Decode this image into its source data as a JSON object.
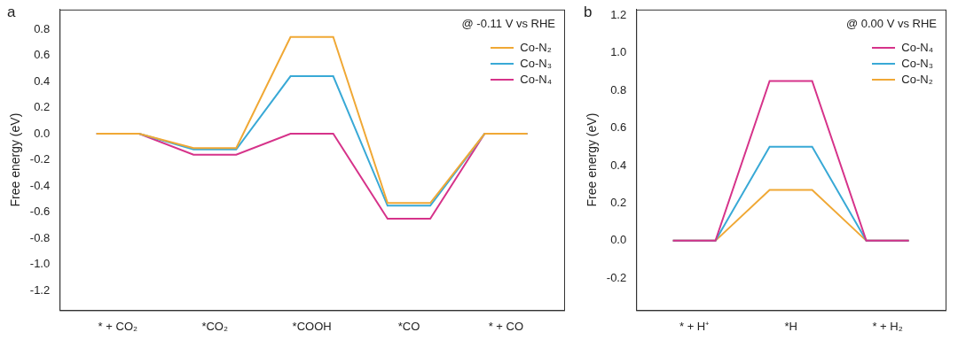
{
  "chart_data": [
    {
      "type": "step",
      "title": "a",
      "annotation": "@ -0.11 V vs RHE",
      "y_label": "Free energy (eV)",
      "categories": [
        "* + CO₂",
        "*CO₂",
        "*COOH",
        "*CO",
        "* + CO"
      ],
      "series": [
        {
          "name": "Co-N₂",
          "color": "#f0a835",
          "values": [
            0,
            -0.11,
            0.74,
            -0.53,
            0
          ]
        },
        {
          "name": "Co-N₃",
          "color": "#39a9d6",
          "values": [
            0,
            -0.12,
            0.44,
            -0.55,
            0
          ]
        },
        {
          "name": "Co-N₄",
          "color": "#d6338a",
          "values": [
            0,
            -0.16,
            0,
            -0.65,
            0
          ]
        }
      ],
      "ylim": [
        -1.35,
        0.95
      ],
      "yticks": [
        {
          "value": -1.2,
          "label": "-1.2"
        },
        {
          "value": -1,
          "label": "-1.0"
        },
        -0.8,
        -0.6,
        -0.4,
        -0.2,
        {
          "value": 0,
          "label": "0.0"
        },
        0.2,
        0.4,
        0.6,
        0.8
      ],
      "legend": "upper right",
      "grid": false
    },
    {
      "type": "step",
      "title": "b",
      "annotation": "@ 0.00 V vs RHE",
      "y_label": "Free energy (eV)",
      "categories": [
        "* + H⁺",
        "*H",
        "* + H₂"
      ],
      "series": [
        {
          "name": "Co-N₄",
          "color": "#d6338a",
          "values": [
            0,
            0.85,
            0
          ]
        },
        {
          "name": "Co-N₃",
          "color": "#39a9d6",
          "values": [
            0,
            0.5,
            0
          ]
        },
        {
          "name": "Co-N₂",
          "color": "#f0a835",
          "values": [
            0,
            0.27,
            0
          ]
        }
      ],
      "ylim": [
        -0.37,
        1.23
      ],
      "yticks": [
        -0.2,
        {
          "value": 0,
          "label": "0.0"
        },
        0.2,
        0.4,
        0.6,
        0.8,
        {
          "value": 1,
          "label": "1.0"
        },
        1.2
      ],
      "legend": "upper right",
      "grid": false
    }
  ]
}
